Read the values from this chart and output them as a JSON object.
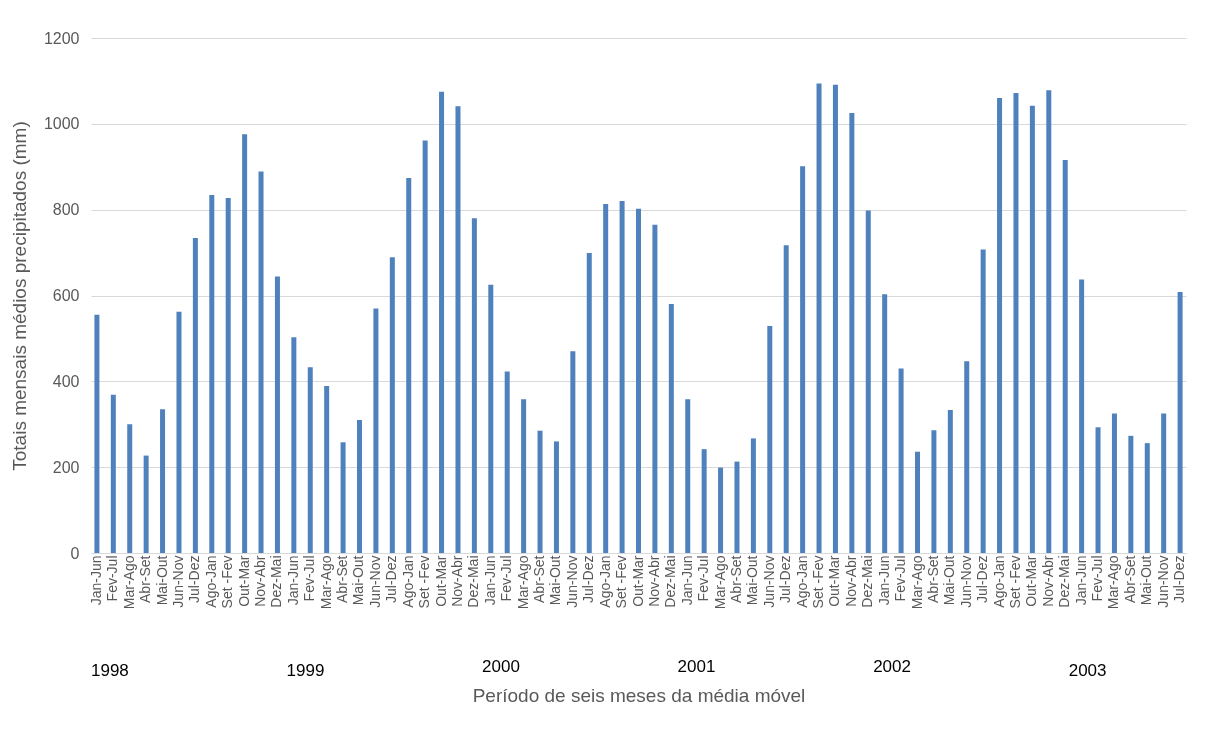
{
  "chart_data": {
    "type": "bar",
    "xlabel": "Período de seis meses da média móvel",
    "ylabel": "Totais mensais médios precipitados (mm)",
    "categories": [
      "Jan-Jun",
      "Fev-Jul",
      "Mar-Ago",
      "Abr-Set",
      "Mai-Out",
      "Jun-Nov",
      "Jul-Dez",
      "Ago-Jan",
      "Set -Fev",
      "Out-Mar",
      "Nov-Abr",
      "Dez-Mai",
      "Jan-Jun",
      "Fev-Jul",
      "Mar-Ago",
      "Abr-Set",
      "Mai-Out",
      "Jun-Nov",
      "Jul-Dez",
      "Ago-Jan",
      "Set -Fev",
      "Out-Mar",
      "Nov-Abr",
      "Dez-Mai",
      "Jan-Jun",
      "Fev-Jul",
      "Mar-Ago",
      "Abr-Set",
      "Mai-Out",
      "Jun-Nov",
      "Jul-Dez",
      "Ago-Jan",
      "Set -Fev",
      "Out-Mar",
      "Nov-Abr",
      "Dez-Mai",
      "Jan-Jun",
      "Fev-Jul",
      "Mar-Ago",
      "Abr-Set",
      "Mai-Out",
      "Jun-Nov",
      "Jul-Dez",
      "Ago-Jan",
      "Set -Fev",
      "Out-Mar",
      "Nov-Abr",
      "Dez-Mai",
      "Jan-Jun",
      "Fev-Jul",
      "Mar-Ago",
      "Abr-Set",
      "Mai-Out",
      "Jun-Nov",
      "Jul-Dez",
      "Ago-Jan",
      "Set -Fev",
      "Out-Mar",
      "Nov-Abr",
      "Dez-Mai",
      "Jan-Jun",
      "Fev-Jul",
      "Mar-Ago",
      "Abr-Set",
      "Mai-Out",
      "Jun-Nov",
      "Jul-Dez"
    ],
    "values": [
      555,
      369,
      300,
      227,
      335,
      562,
      734,
      834,
      827,
      976,
      889,
      644,
      503,
      433,
      389,
      258,
      310,
      570,
      689,
      874,
      961,
      1075,
      1041,
      780,
      625,
      423,
      358,
      285,
      260,
      470,
      699,
      813,
      820,
      802,
      765,
      580,
      358,
      242,
      199,
      213,
      267,
      529,
      717,
      901,
      1094,
      1091,
      1025,
      798,
      603,
      430,
      236,
      286,
      333,
      447,
      707,
      1060,
      1072,
      1042,
      1078,
      916,
      637,
      293,
      325,
      273,
      256,
      325,
      608
    ],
    "color": "#4f81bd",
    "ylim": [
      0,
      1200
    ],
    "yticks": [
      0,
      200,
      400,
      600,
      800,
      1000,
      1200
    ],
    "grid": "y",
    "annotations": [
      "1998",
      "1999",
      "2000",
      "2001",
      "2002",
      "2003"
    ]
  }
}
